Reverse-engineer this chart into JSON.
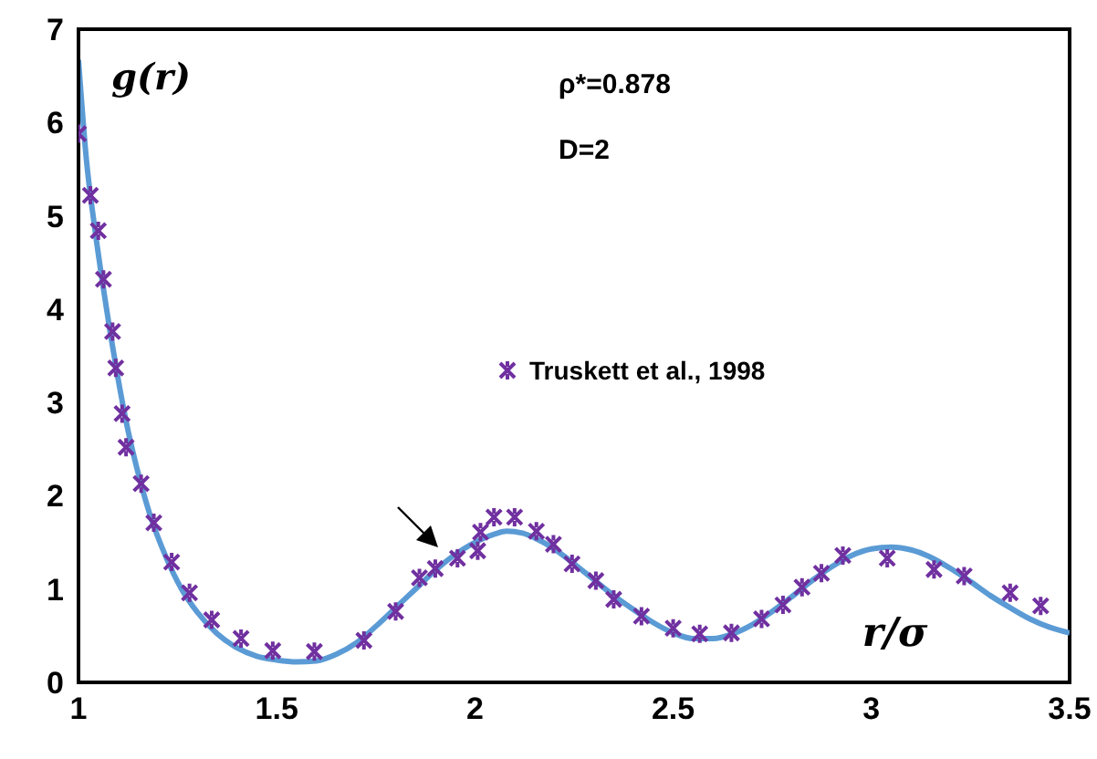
{
  "chart_data": {
    "type": "line",
    "xlabel": "r/σ",
    "ylabel": "g(r)",
    "annotations": [
      "ρ*=0.878",
      "D=2"
    ],
    "xlim": [
      1,
      3.5
    ],
    "xticks": [
      1,
      1.5,
      2,
      2.5,
      3,
      3.5
    ],
    "ylim": [
      0,
      7
    ],
    "yticks": [
      0,
      1,
      2,
      3,
      4,
      5,
      6,
      7
    ],
    "grid": false,
    "legend": "right",
    "series": [
      {
        "color": "#5b9bd5",
        "marker": "none",
        "line_style": "solid",
        "x": [
          1.0,
          1.02,
          1.04,
          1.06,
          1.08,
          1.1,
          1.12,
          1.15,
          1.18,
          1.22,
          1.26,
          1.3,
          1.35,
          1.4,
          1.45,
          1.5,
          1.55,
          1.6,
          1.65,
          1.7,
          1.75,
          1.8,
          1.85,
          1.9,
          1.95,
          2.0,
          2.05,
          2.08,
          2.12,
          2.15,
          2.2,
          2.25,
          2.3,
          2.35,
          2.4,
          2.45,
          2.5,
          2.55,
          2.6,
          2.65,
          2.7,
          2.75,
          2.8,
          2.85,
          2.9,
          2.95,
          3.0,
          3.05,
          3.1,
          3.15,
          3.2,
          3.25,
          3.3,
          3.35,
          3.4,
          3.45,
          3.5
        ],
        "values": [
          6.67,
          5.6,
          4.9,
          4.3,
          3.75,
          3.25,
          2.8,
          2.25,
          1.8,
          1.35,
          1.0,
          0.75,
          0.52,
          0.37,
          0.28,
          0.24,
          0.22,
          0.23,
          0.3,
          0.42,
          0.6,
          0.8,
          1.0,
          1.2,
          1.37,
          1.5,
          1.59,
          1.62,
          1.6,
          1.55,
          1.43,
          1.27,
          1.1,
          0.93,
          0.78,
          0.64,
          0.53,
          0.47,
          0.47,
          0.52,
          0.62,
          0.76,
          0.92,
          1.09,
          1.24,
          1.36,
          1.43,
          1.45,
          1.42,
          1.34,
          1.22,
          1.08,
          0.93,
          0.8,
          0.68,
          0.59,
          0.53
        ]
      },
      {
        "type": "scatter",
        "name": "Truskett et al., 1998",
        "color": "#7030a0",
        "marker": "cross",
        "x": [
          1.0,
          1.03,
          1.05,
          1.063,
          1.086,
          1.094,
          1.11,
          1.12,
          1.158,
          1.19,
          1.235,
          1.28,
          1.336,
          1.41,
          1.49,
          1.595,
          1.72,
          1.8,
          1.86,
          1.9,
          1.956,
          2.007,
          2.014,
          2.048,
          2.1,
          2.155,
          2.198,
          2.245,
          2.305,
          2.35,
          2.42,
          2.5,
          2.567,
          2.647,
          2.723,
          2.777,
          2.825,
          2.874,
          2.928,
          3.04,
          3.158,
          3.234,
          3.35,
          3.427
        ],
        "values": [
          5.88,
          5.22,
          4.84,
          4.32,
          3.76,
          3.37,
          2.88,
          2.52,
          2.13,
          1.71,
          1.29,
          0.96,
          0.67,
          0.47,
          0.34,
          0.33,
          0.45,
          0.76,
          1.12,
          1.22,
          1.33,
          1.41,
          1.61,
          1.77,
          1.77,
          1.62,
          1.48,
          1.27,
          1.09,
          0.89,
          0.71,
          0.58,
          0.52,
          0.53,
          0.68,
          0.83,
          1.02,
          1.17,
          1.36,
          1.33,
          1.21,
          1.14,
          0.96,
          0.82
        ]
      }
    ]
  }
}
